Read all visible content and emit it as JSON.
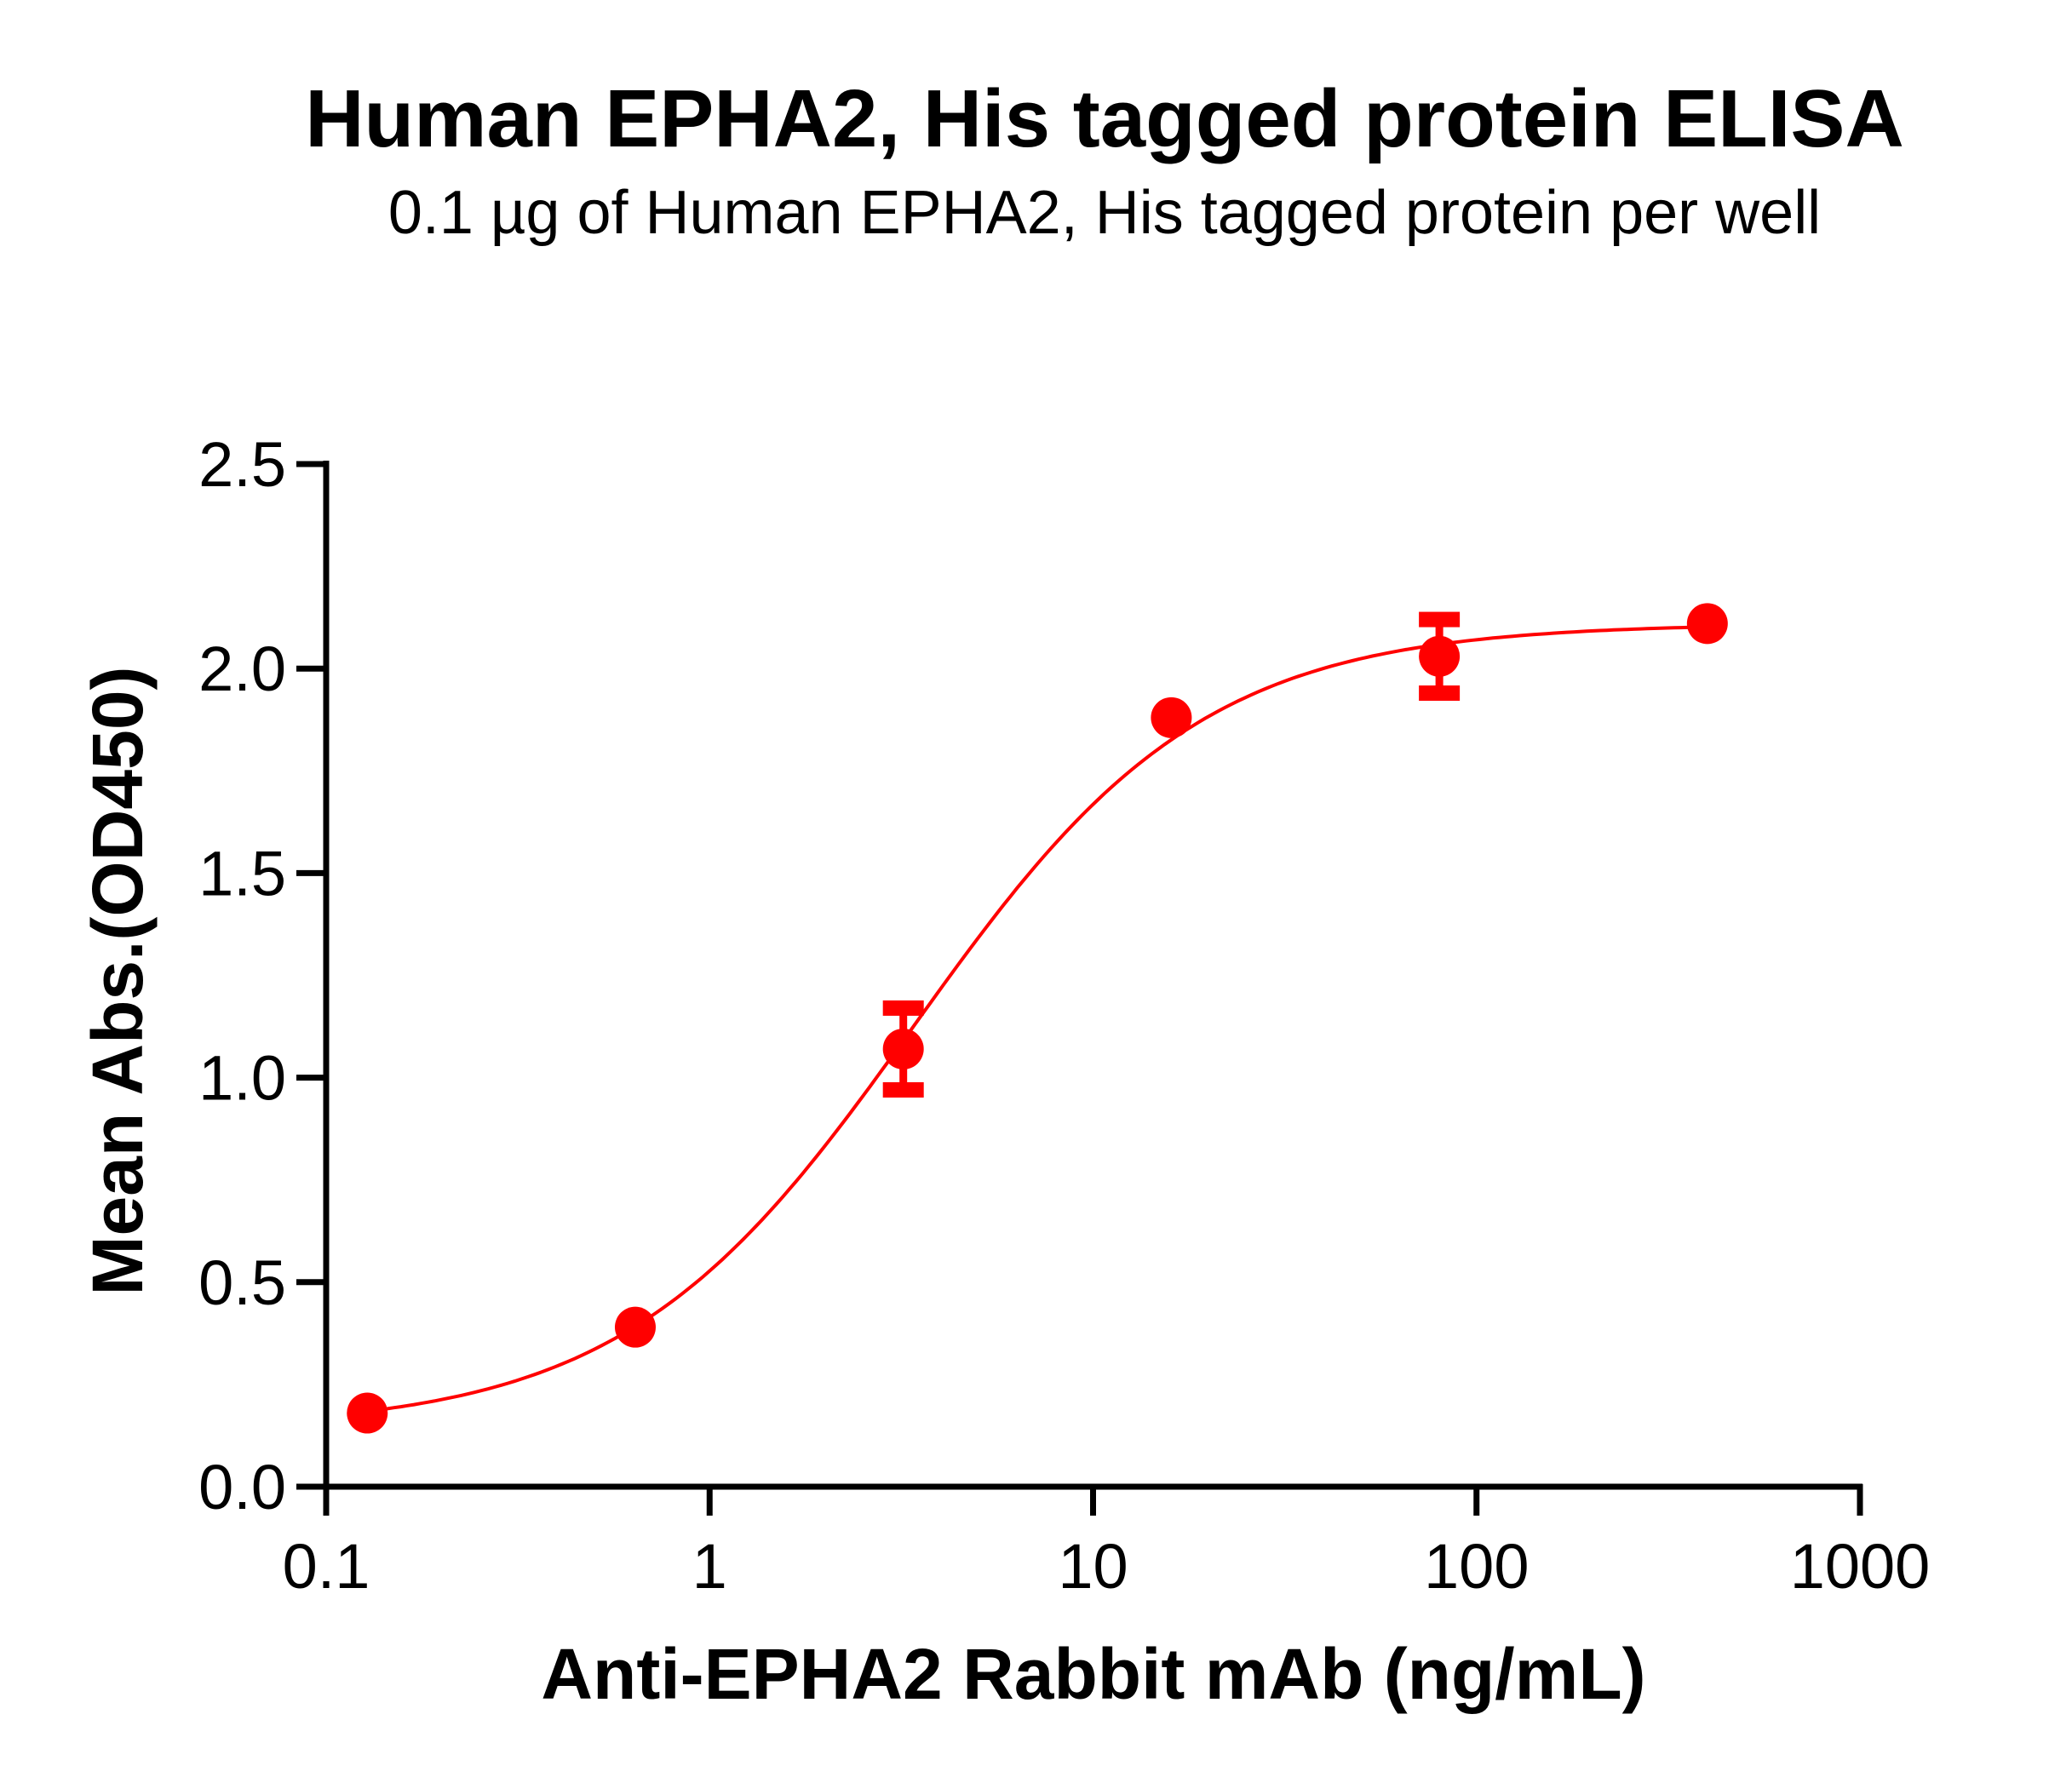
{
  "chart_data": {
    "type": "scatter",
    "title": "Human EPHA2, His tagged protein ELISA",
    "subtitle": "0.1 µg of Human EPHA2, His tagged protein per well",
    "xlabel": "Anti-EPHA2 Rabbit mAb (ng/mL)",
    "ylabel": "Mean Abs.(OD450)",
    "xscale": "log",
    "xlim": [
      0.1,
      1000
    ],
    "ylim": [
      0,
      2.5
    ],
    "x_ticks": [
      "0.1",
      "1",
      "10",
      "100",
      "1000"
    ],
    "y_ticks": [
      "0.0",
      "0.5",
      "1.0",
      "1.5",
      "2.0",
      "2.5"
    ],
    "grid": false,
    "legend": null,
    "series": [
      {
        "name": "Anti-EPHA2 Rabbit mAb",
        "color": "#ff0000",
        "x": [
          0.128,
          0.64,
          3.2,
          16,
          80,
          400
        ],
        "y": [
          0.18,
          0.39,
          1.07,
          1.88,
          2.03,
          2.11
        ],
        "error": [
          0.0,
          0.0,
          0.1,
          0.0,
          0.09,
          0.0
        ],
        "fit": {
          "model": "4PL",
          "bottom": 0.14,
          "top": 2.11,
          "ec50": 3.4,
          "hill": 1.15
        }
      }
    ]
  }
}
